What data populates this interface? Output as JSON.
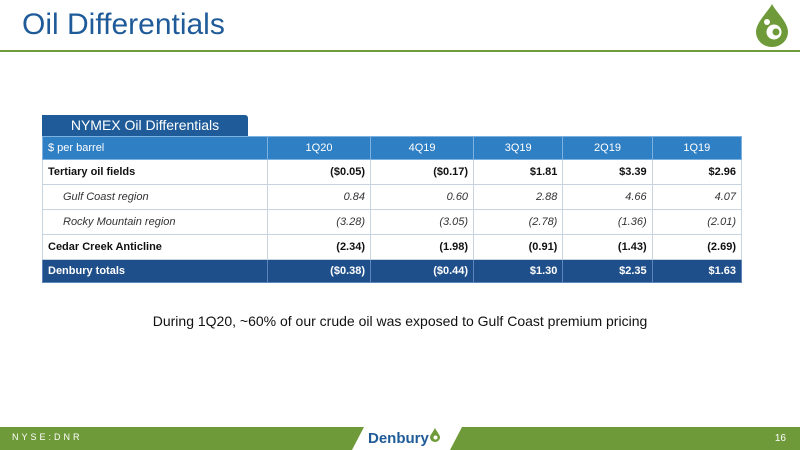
{
  "title": "Oil Differentials",
  "table": {
    "tab_label": "NYMEX Oil Differentials",
    "header": [
      "$ per barrel",
      "1Q20",
      "4Q19",
      "3Q19",
      "2Q19",
      "1Q19"
    ],
    "rows": [
      {
        "label": "Tertiary oil fields",
        "values": [
          "($0.05)",
          "($0.17)",
          "$1.81",
          "$3.39",
          "$2.96"
        ]
      },
      {
        "label": "Gulf Coast region",
        "values": [
          "0.84",
          "0.60",
          "2.88",
          "4.66",
          "4.07"
        ]
      },
      {
        "label": "Rocky Mountain region",
        "values": [
          "(3.28)",
          "(3.05)",
          "(2.78)",
          "(1.36)",
          "(2.01)"
        ]
      },
      {
        "label": "Cedar Creek Anticline",
        "values": [
          "(2.34)",
          "(1.98)",
          "(0.91)",
          "(1.43)",
          "(2.69)"
        ]
      },
      {
        "label": "Denbury totals",
        "values": [
          "($0.38)",
          "($0.44)",
          "$1.30",
          "$2.35",
          "$1.63"
        ]
      }
    ]
  },
  "caption": "During 1Q20, ~60% of our crude oil was exposed to Gulf Coast premium pricing",
  "footer": {
    "ticker": "NYSE:DNR",
    "brand": "Denbury",
    "page_number": "16"
  },
  "colors": {
    "primary_blue": "#1f5b99",
    "header_blue": "#2f7fc4",
    "brand_green": "#6f9a3a"
  }
}
